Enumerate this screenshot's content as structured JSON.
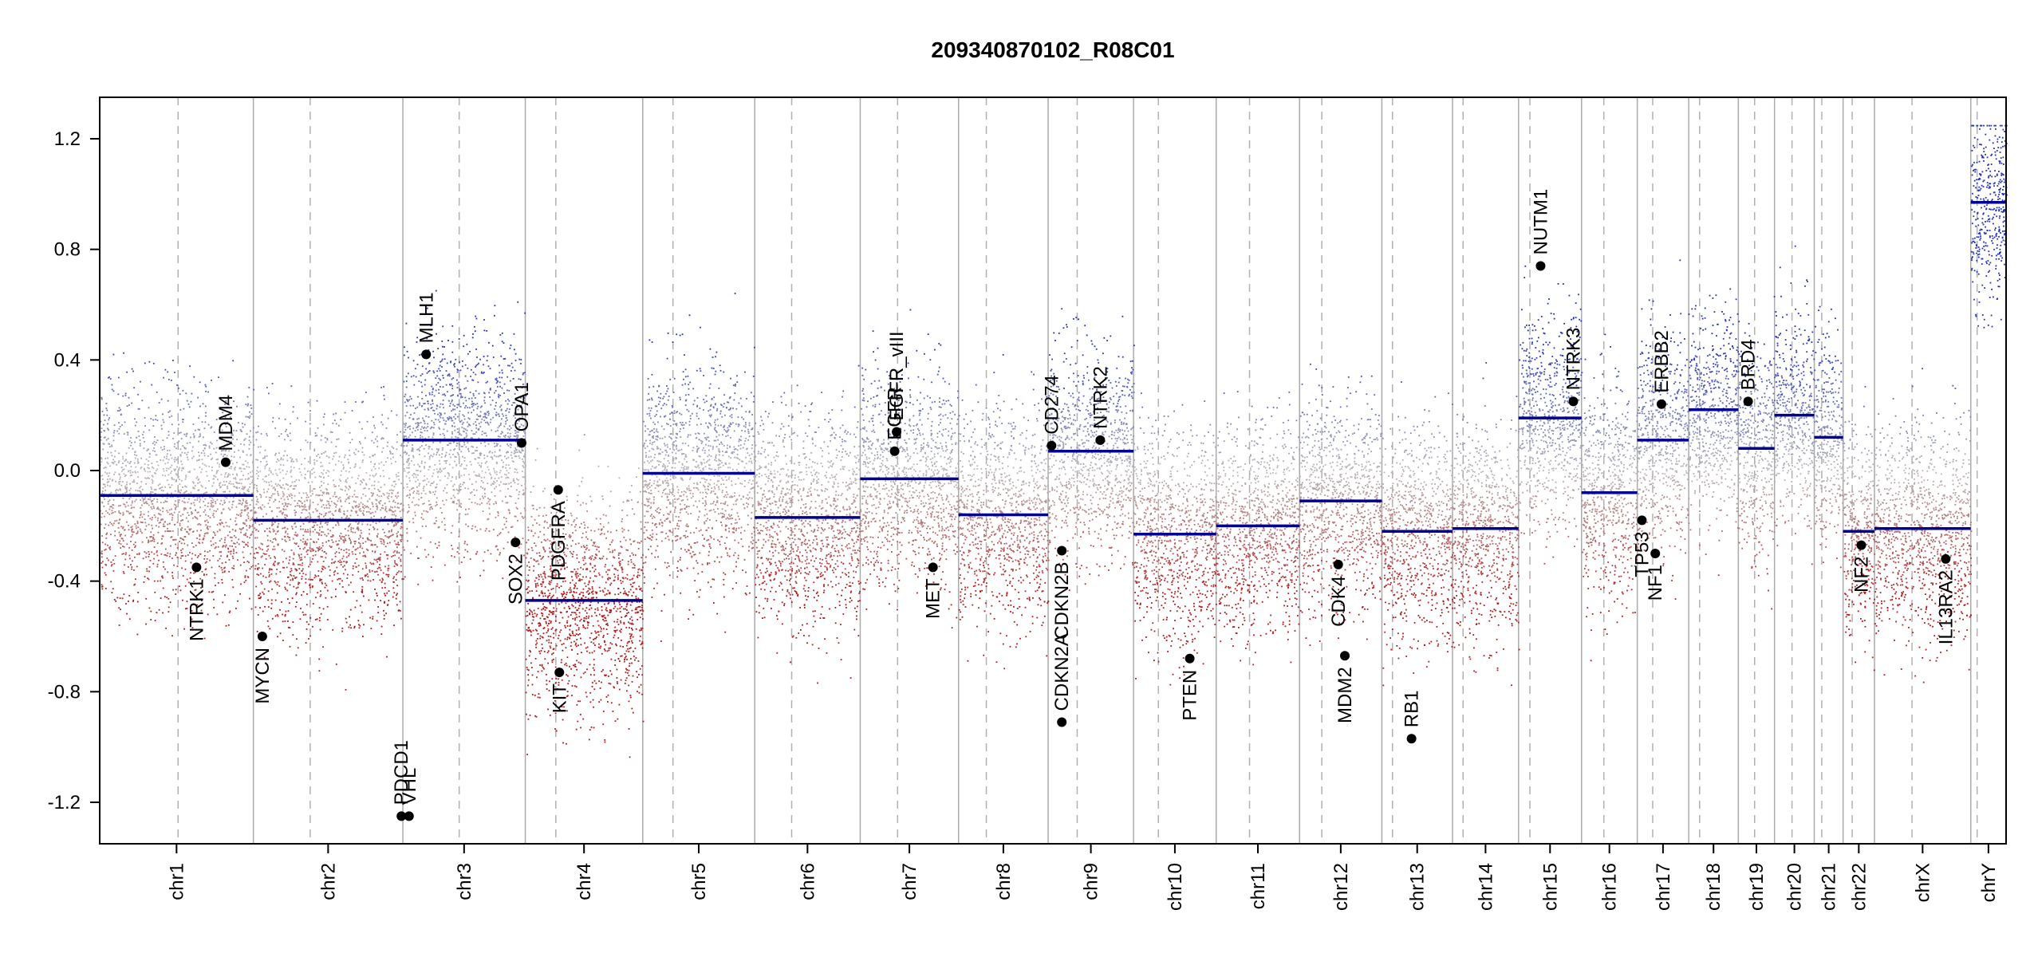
{
  "chart_data": {
    "type": "scatter",
    "title": "209340870102_R08C01",
    "xlabel": "",
    "ylabel": "",
    "ylim": [
      -1.35,
      1.35
    ],
    "yticks": [
      -1.2,
      -0.8,
      -0.4,
      0.0,
      0.4,
      0.8,
      1.2
    ],
    "ytick_labels": [
      "-1.2",
      "-0.8",
      "-0.4",
      "0.0",
      "0.4",
      "0.8",
      "1.2"
    ],
    "chromosomes": [
      {
        "name": "chr1",
        "length": 248.9,
        "centromere": 0.51,
        "segment": -0.09
      },
      {
        "name": "chr2",
        "length": 242.2,
        "centromere": 0.38,
        "segment": -0.18
      },
      {
        "name": "chr3",
        "length": 198.3,
        "centromere": 0.46,
        "segment": 0.11
      },
      {
        "name": "chr4",
        "length": 190.2,
        "centromere": 0.26,
        "segment": -0.47
      },
      {
        "name": "chr5",
        "length": 181.5,
        "centromere": 0.27,
        "segment": -0.01
      },
      {
        "name": "chr6",
        "length": 170.8,
        "centromere": 0.35,
        "segment": -0.17
      },
      {
        "name": "chr7",
        "length": 159.3,
        "centromere": 0.38,
        "segment": -0.03
      },
      {
        "name": "chr8",
        "length": 145.1,
        "centromere": 0.31,
        "segment": -0.16
      },
      {
        "name": "chr9",
        "length": 138.4,
        "centromere": 0.34,
        "segment": 0.07
      },
      {
        "name": "chr10",
        "length": 133.8,
        "centromere": 0.3,
        "segment": -0.23
      },
      {
        "name": "chr11",
        "length": 135.1,
        "centromere": 0.4,
        "segment": -0.2
      },
      {
        "name": "chr12",
        "length": 133.3,
        "centromere": 0.27,
        "segment": -0.11
      },
      {
        "name": "chr13",
        "length": 114.4,
        "centromere": 0.15,
        "segment": -0.22
      },
      {
        "name": "chr14",
        "length": 107.0,
        "centromere": 0.16,
        "segment": -0.21
      },
      {
        "name": "chr15",
        "length": 102.0,
        "centromere": 0.18,
        "segment": 0.19
      },
      {
        "name": "chr16",
        "length": 90.3,
        "centromere": 0.4,
        "segment": -0.08
      },
      {
        "name": "chr17",
        "length": 83.3,
        "centromere": 0.3,
        "segment": 0.11
      },
      {
        "name": "chr18",
        "length": 80.4,
        "centromere": 0.22,
        "segment": 0.22
      },
      {
        "name": "chr19",
        "length": 58.6,
        "centromere": 0.45,
        "segment": 0.08
      },
      {
        "name": "chr20",
        "length": 64.4,
        "centromere": 0.44,
        "segment": 0.2
      },
      {
        "name": "chr21",
        "length": 46.7,
        "centromere": 0.26,
        "segment": 0.12
      },
      {
        "name": "chr22",
        "length": 50.8,
        "centromere": 0.29,
        "segment": -0.22
      },
      {
        "name": "chrX",
        "length": 156.0,
        "centromere": 0.39,
        "segment": -0.21
      },
      {
        "name": "chrY",
        "length": 57.2,
        "centromere": 0.18,
        "segment": 0.97
      }
    ],
    "genes": [
      {
        "name": "MDM4",
        "chr": "chr1",
        "pos": 0.82,
        "value": 0.03,
        "label_side": "above"
      },
      {
        "name": "NTRK1",
        "chr": "chr1",
        "pos": 0.63,
        "value": -0.35,
        "label_side": "below"
      },
      {
        "name": "MYCN",
        "chr": "chr2",
        "pos": 0.06,
        "value": -0.6,
        "label_side": "below"
      },
      {
        "name": "PDCD1",
        "chr": "chr2",
        "pos": 0.99,
        "value": -1.25,
        "label_side": "above"
      },
      {
        "name": "VHL",
        "chr": "chr3",
        "pos": 0.05,
        "value": -1.25,
        "label_side": "above"
      },
      {
        "name": "MLH1",
        "chr": "chr3",
        "pos": 0.19,
        "value": 0.42,
        "label_side": "above"
      },
      {
        "name": "SOX2",
        "chr": "chr3",
        "pos": 0.92,
        "value": -0.26,
        "label_side": "below"
      },
      {
        "name": "OPA1",
        "chr": "chr3",
        "pos": 0.97,
        "value": 0.1,
        "label_side": "above"
      },
      {
        "name": "PDGFRA",
        "chr": "chr4",
        "pos": 0.28,
        "value": -0.07,
        "label_side": "below"
      },
      {
        "name": "KIT",
        "chr": "chr4",
        "pos": 0.29,
        "value": -0.73,
        "label_side": "below"
      },
      {
        "name": "EGFR",
        "chr": "chr7",
        "pos": 0.35,
        "value": 0.07,
        "label_side": "above"
      },
      {
        "name": "EGFR_vIII",
        "chr": "chr7",
        "pos": 0.37,
        "value": 0.14,
        "label_side": "above"
      },
      {
        "name": "MET",
        "chr": "chr7",
        "pos": 0.74,
        "value": -0.35,
        "label_side": "below"
      },
      {
        "name": "CD274",
        "chr": "chr9",
        "pos": 0.04,
        "value": 0.09,
        "label_side": "above"
      },
      {
        "name": "CDKN2A",
        "chr": "chr9",
        "pos": 0.16,
        "value": -0.91,
        "label_side": "above"
      },
      {
        "name": "CDKN2B",
        "chr": "chr9",
        "pos": 0.16,
        "value": -0.29,
        "label_side": "below"
      },
      {
        "name": "NTRK2",
        "chr": "chr9",
        "pos": 0.61,
        "value": 0.11,
        "label_side": "above"
      },
      {
        "name": "PTEN",
        "chr": "chr10",
        "pos": 0.68,
        "value": -0.68,
        "label_side": "below"
      },
      {
        "name": "CDK4",
        "chr": "chr12",
        "pos": 0.47,
        "value": -0.34,
        "label_side": "below"
      },
      {
        "name": "MDM2",
        "chr": "chr12",
        "pos": 0.55,
        "value": -0.67,
        "label_side": "below"
      },
      {
        "name": "RB1",
        "chr": "chr13",
        "pos": 0.42,
        "value": -0.97,
        "label_side": "above"
      },
      {
        "name": "NUTM1",
        "chr": "chr15",
        "pos": 0.35,
        "value": 0.74,
        "label_side": "above"
      },
      {
        "name": "NTRK3",
        "chr": "chr15",
        "pos": 0.87,
        "value": 0.25,
        "label_side": "above"
      },
      {
        "name": "TP53",
        "chr": "chr17",
        "pos": 0.09,
        "value": -0.18,
        "label_side": "below"
      },
      {
        "name": "NF1",
        "chr": "chr17",
        "pos": 0.35,
        "value": -0.3,
        "label_side": "below"
      },
      {
        "name": "ERBB2",
        "chr": "chr17",
        "pos": 0.47,
        "value": 0.24,
        "label_side": "above"
      },
      {
        "name": "BRD4",
        "chr": "chr19",
        "pos": 0.27,
        "value": 0.25,
        "label_side": "above"
      },
      {
        "name": "NF2",
        "chr": "chr22",
        "pos": 0.58,
        "value": -0.27,
        "label_side": "below"
      },
      {
        "name": "IL13RA2",
        "chr": "chrX",
        "pos": 0.74,
        "value": -0.32,
        "label_side": "below"
      }
    ],
    "point_colors": {
      "gain": "#1f2fb8",
      "neutral": "#b8b8b8",
      "loss": "#b01818"
    },
    "segment_color": "#000090",
    "grid": false,
    "legend": "none"
  }
}
